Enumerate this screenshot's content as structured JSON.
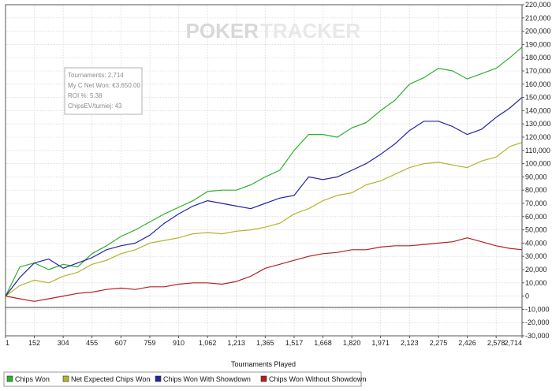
{
  "watermark": {
    "part1": "POKER",
    "part2": "TRACKER"
  },
  "info_box": {
    "lines": [
      "Tournaments: 2,714",
      "My C Net Won: €3,650.00",
      "ROI %: 5.38",
      "ChipsEV/turniej: 43"
    ]
  },
  "colors": {
    "chips_won": "#2db02d",
    "net_expected": "#b3b32a",
    "with_showdown": "#2222aa",
    "without_showdown": "#b32020",
    "grid": "#cfcfcf",
    "background": "#ffffff"
  },
  "chart_data": {
    "type": "line",
    "xlabel": "Tournaments Played",
    "ylabel": "",
    "xlim": [
      1,
      2714
    ],
    "ylim": [
      -30000,
      220000
    ],
    "grid": true,
    "legend_position": "bottom",
    "x_ticks": [
      1,
      152,
      304,
      455,
      607,
      759,
      910,
      1062,
      1213,
      1365,
      1517,
      1668,
      1820,
      1971,
      2123,
      2275,
      2426,
      2578,
      2714
    ],
    "x_tick_labels": [
      "1",
      "152",
      "304",
      "455",
      "607",
      "759",
      "910",
      "1,062",
      "1,213",
      "1,365",
      "1,517",
      "1,668",
      "1,820",
      "1,971",
      "2,123",
      "2,275",
      "2,426",
      "2,578",
      "2,714"
    ],
    "y_ticks": [
      -30000,
      -20000,
      -10000,
      0,
      10000,
      20000,
      30000,
      40000,
      50000,
      60000,
      70000,
      80000,
      90000,
      100000,
      110000,
      120000,
      130000,
      140000,
      150000,
      160000,
      170000,
      180000,
      190000,
      200000,
      210000,
      220000
    ],
    "y_tick_labels": [
      "-30,000",
      "-20,000",
      "-10,000",
      "0",
      "10,000",
      "20,000",
      "30,000",
      "40,000",
      "50,000",
      "60,000",
      "70,000",
      "80,000",
      "90,000",
      "100,000",
      "110,000",
      "120,000",
      "130,000",
      "140,000",
      "150,000",
      "160,000",
      "170,000",
      "180,000",
      "190,000",
      "200,000",
      "210,000",
      "220,000"
    ],
    "x": [
      1,
      76,
      152,
      228,
      304,
      380,
      455,
      531,
      607,
      683,
      759,
      835,
      910,
      986,
      1062,
      1138,
      1213,
      1289,
      1365,
      1441,
      1517,
      1593,
      1668,
      1744,
      1820,
      1895,
      1971,
      2047,
      2123,
      2199,
      2275,
      2350,
      2426,
      2502,
      2578,
      2650,
      2714
    ],
    "series": [
      {
        "name": "Chips Won",
        "key": "chips_won",
        "values": [
          0,
          22000,
          25000,
          20000,
          24000,
          22000,
          32000,
          38000,
          45000,
          50000,
          56000,
          62000,
          67000,
          72000,
          79000,
          80000,
          80000,
          84000,
          90000,
          95000,
          110000,
          122000,
          122000,
          120000,
          127000,
          131000,
          140000,
          148000,
          160000,
          165000,
          172000,
          170000,
          164000,
          168000,
          172000,
          180000,
          188000
        ]
      },
      {
        "name": "Net Expected Chips Won",
        "key": "net_expected",
        "values": [
          0,
          8000,
          12000,
          10000,
          15000,
          18000,
          24000,
          27000,
          32000,
          35000,
          40000,
          42000,
          44000,
          47000,
          48000,
          47000,
          49000,
          50000,
          52000,
          55000,
          62000,
          66000,
          72000,
          76000,
          78000,
          84000,
          87000,
          92000,
          97000,
          100000,
          101000,
          99000,
          97000,
          102000,
          105000,
          113000,
          116000
        ]
      },
      {
        "name": "Chips Won With Showdown",
        "key": "with_showdown",
        "values": [
          0,
          14000,
          25000,
          28000,
          21000,
          25000,
          29000,
          35000,
          38000,
          40000,
          46000,
          55000,
          62000,
          68000,
          72000,
          70000,
          68000,
          66000,
          70000,
          74000,
          76000,
          90000,
          88000,
          90000,
          95000,
          100000,
          107000,
          115000,
          125000,
          132000,
          132000,
          128000,
          122000,
          126000,
          135000,
          142000,
          150000
        ]
      },
      {
        "name": "Chips Won Without Showdown",
        "key": "without_showdown",
        "values": [
          0,
          -2000,
          -4000,
          -2000,
          0,
          2000,
          3000,
          5000,
          6000,
          5000,
          7000,
          7000,
          9000,
          10000,
          10000,
          9000,
          11000,
          15000,
          21000,
          24000,
          27000,
          30000,
          32000,
          33000,
          35000,
          35000,
          37000,
          38000,
          38000,
          39000,
          40000,
          41000,
          44000,
          41000,
          38000,
          36000,
          35000
        ]
      }
    ]
  }
}
